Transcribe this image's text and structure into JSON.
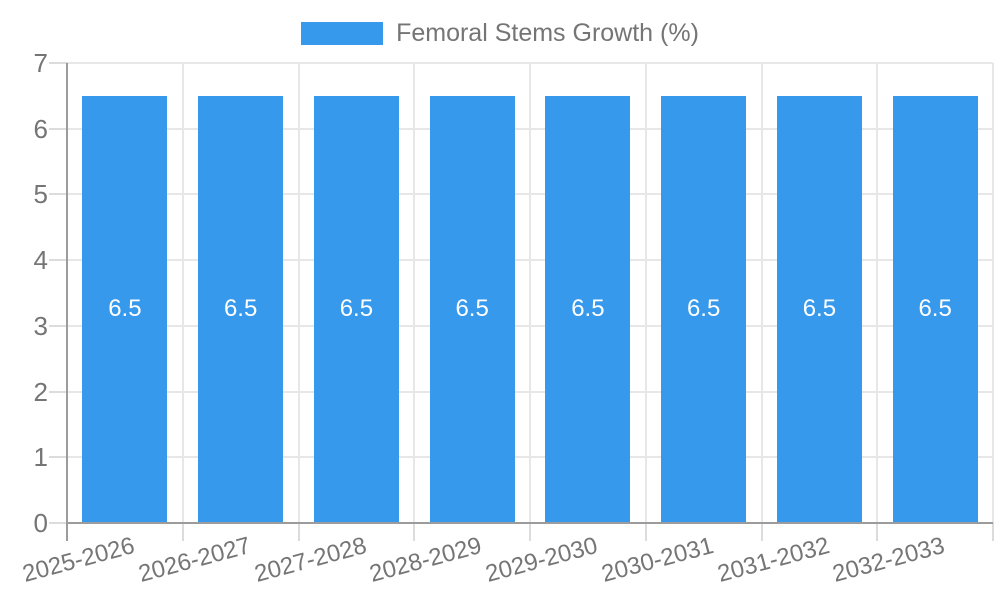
{
  "chart_data": {
    "type": "bar",
    "title": "Femoral Stems Growth (%)",
    "legend": {
      "label": "Femoral Stems Growth (%)",
      "position": "top"
    },
    "categories": [
      "2025-2026",
      "2026-2027",
      "2027-2028",
      "2028-2029",
      "2029-2030",
      "2030-2031",
      "2031-2032",
      "2032-2033"
    ],
    "values": [
      6.5,
      6.5,
      6.5,
      6.5,
      6.5,
      6.5,
      6.5,
      6.5
    ],
    "bar_labels": [
      "6.5",
      "6.5",
      "6.5",
      "6.5",
      "6.5",
      "6.5",
      "6.5",
      "6.5"
    ],
    "xlabel": "",
    "ylabel": "",
    "ylim": [
      0,
      7
    ],
    "yticks": [
      0,
      1,
      2,
      3,
      4,
      5,
      6,
      7
    ],
    "grid": true,
    "colors": {
      "bar": "#3799ec",
      "bar_label": "#ffffff",
      "axis_text": "#757575",
      "grid": "#e7e7e7",
      "tick": "#dcdcdc",
      "axis_line": "#9c9c9c"
    }
  }
}
